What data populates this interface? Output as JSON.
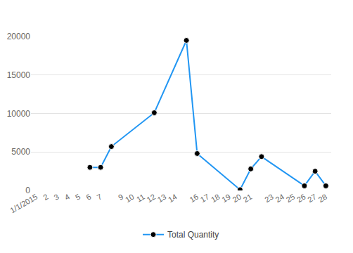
{
  "chart_data": {
    "type": "line",
    "categories": [
      "1/1/2015",
      "2",
      "3",
      "4",
      "5",
      "6",
      "7",
      null,
      "9",
      "10",
      "11",
      "12",
      "13",
      "14",
      null,
      "16",
      "17",
      "18",
      "19",
      "20",
      "21",
      null,
      "23",
      "24",
      "25",
      "26",
      "27",
      "28"
    ],
    "series": [
      {
        "name": "Total Quantity",
        "color": "#2196f3",
        "values": [
          null,
          null,
          null,
          null,
          null,
          3000,
          3000,
          5700,
          null,
          null,
          null,
          10100,
          null,
          null,
          19500,
          4800,
          null,
          null,
          null,
          100,
          2800,
          4400,
          null,
          null,
          null,
          600,
          2500,
          600
        ]
      }
    ],
    "ylim": [
      0,
      20000
    ],
    "yticks": [
      0,
      5000,
      10000,
      15000,
      20000
    ],
    "grid": true,
    "legend": "bottom",
    "marker": "circle"
  }
}
